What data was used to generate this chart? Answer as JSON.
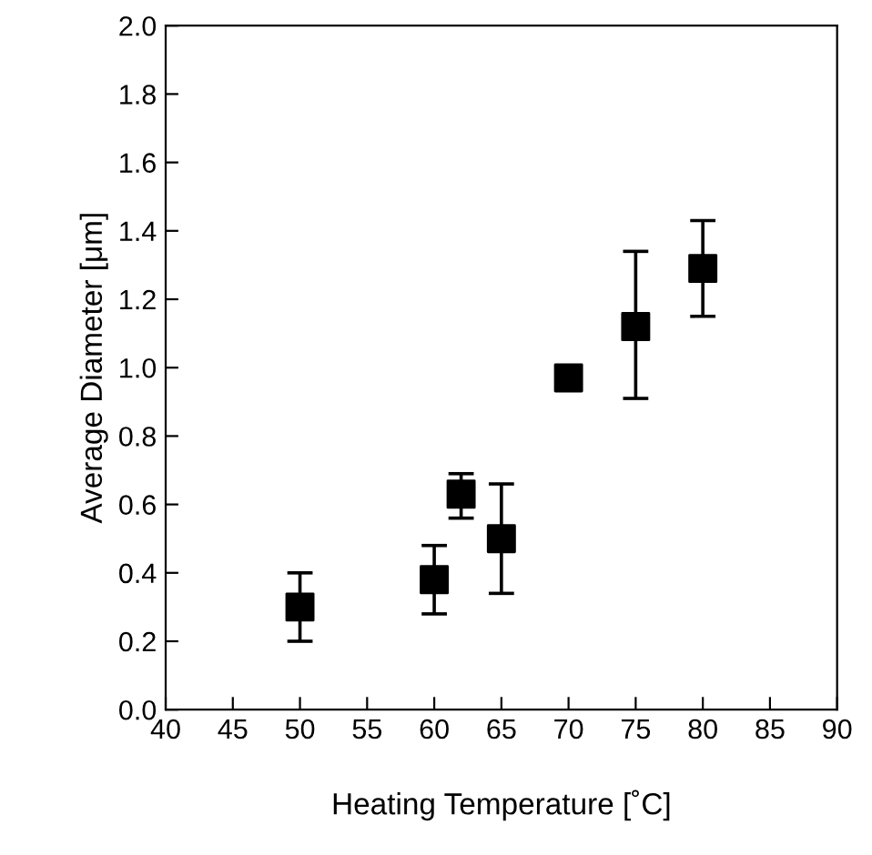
{
  "chart_data": {
    "type": "scatter",
    "xlabel": "Heating Temperature [˚C]",
    "ylabel": "Average Diameter [μm]",
    "x": [
      50,
      60,
      62,
      65,
      70,
      75,
      80
    ],
    "values": [
      0.3,
      0.38,
      0.63,
      0.5,
      0.97,
      1.12,
      1.29
    ],
    "errors": [
      [
        0.2,
        0.4
      ],
      [
        0.28,
        0.48
      ],
      [
        0.56,
        0.69
      ],
      [
        0.34,
        0.66
      ],
      null,
      [
        0.91,
        1.34
      ],
      [
        1.15,
        1.43
      ]
    ],
    "color": "#000000",
    "marker": "square",
    "xlim": [
      40,
      90
    ],
    "xticks": [
      40,
      45,
      50,
      55,
      60,
      65,
      70,
      75,
      80,
      85,
      90
    ],
    "ylim": [
      0,
      2.0
    ],
    "yticks": [
      {
        "value": 0,
        "label": "0.0"
      },
      {
        "value": 0.2,
        "label": "0.2"
      },
      {
        "value": 0.4,
        "label": "0.4"
      },
      {
        "value": 0.6,
        "label": "0.6"
      },
      {
        "value": 0.8,
        "label": "0.8"
      },
      {
        "value": 1.0,
        "label": "1.0"
      },
      {
        "value": 1.2,
        "label": "1.2"
      },
      {
        "value": 1.4,
        "label": "1.4"
      },
      {
        "value": 1.6,
        "label": "1.6"
      },
      {
        "value": 1.8,
        "label": "1.8"
      },
      {
        "value": 2.0,
        "label": "2.0"
      }
    ],
    "grid": false
  }
}
